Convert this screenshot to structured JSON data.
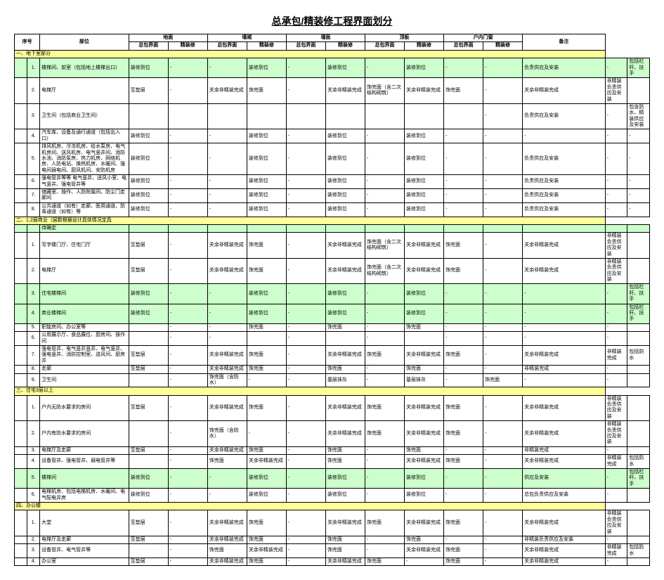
{
  "title": "总承包/精装修工程界面划分",
  "headers": {
    "seq": "序号",
    "part": "部位",
    "groups": [
      "地面",
      "墙裙",
      "墙面",
      "顶板",
      "户内门窗"
    ],
    "sub": [
      "总包界面",
      "精装修"
    ],
    "remark": "备注"
  },
  "sections": [
    {
      "label": "一、地下室部分",
      "rows": [
        {
          "n": "1.",
          "part": "楼梯间、前室（包括地上楼梯出口）",
          "c": [
            "装修到位",
            "-",
            "-",
            "装修到位",
            "-",
            "装修到位",
            "-",
            "装修到位",
            "-",
            "-",
            "负责供应及安装",
            "-"
          ],
          "remark": "包括栏杆、扶手",
          "green": true
        },
        {
          "n": "2.",
          "part": "电梯厅",
          "c": [
            "至垫层",
            "-",
            "关余非精装完成",
            "饰完面",
            "-",
            "关余非精装完成",
            "饰完面（含二次结构砌筑）",
            "关余非精装完成",
            "饰完面",
            "-",
            "关余非精装完成",
            "非精装负责供应及安装"
          ],
          "remark": ""
        },
        {
          "n": "3.",
          "part": "卫生间（包括商业卫生间）",
          "c": [
            "",
            "",
            "",
            "",
            "",
            "",
            "",
            "",
            "",
            "-",
            "负责供应及安装",
            "-"
          ],
          "remark": "包含防水、精装供应及安装"
        },
        {
          "n": "4.",
          "part": "汽车库、设备及通行通道（包括出入口）",
          "c": [
            "装修到位",
            "-",
            "-",
            "装修到位",
            "-",
            "装修到位",
            "-",
            "装修到位",
            "-",
            "-",
            "-",
            "-"
          ],
          "remark": "-"
        },
        {
          "n": "5.",
          "part": "排风机房、冷冻机房、给水泵房、电气机房间、送风机房、电气竖井间、消防水池、消防泵房、热力机房、网络机房、人防电站、换热机房、水暖间、强电间弱电间、厨风机间、安防机房",
          "c": [
            "装修到位",
            "-",
            "-",
            "装修到位",
            "-",
            "装修到位",
            "-",
            "装修到位",
            "-",
            "-",
            "负责供应及安装",
            "-"
          ],
          "remark": "-"
        },
        {
          "n": "6.",
          "part": "强电管井等等 电气竖井、送风小室、电气竖井、强电管井等",
          "c": [
            "装修到位",
            "-",
            "-",
            "装修到位",
            "-",
            "装修到位",
            "-",
            "装修到位",
            "-",
            "-",
            "负责供应及安装",
            "-"
          ],
          "remark": "-"
        },
        {
          "n": "7.",
          "part": "储藏室、操作、人防附属间、防尘门走廊间",
          "c": [
            "装修到位",
            "-",
            "-",
            "装修到位",
            "-",
            "装修到位",
            "-",
            "装修到位",
            "-",
            "-",
            "负责供应及安装",
            "-"
          ],
          "remark": "-"
        },
        {
          "n": "8.",
          "part": "公共通道（如有）走廊、医用通道、防毒通道（如有）等",
          "c": [
            "装修到位",
            "-",
            "-",
            "装修到位",
            "-",
            "装修到位",
            "-",
            "装修到位",
            "-",
            "-",
            "负责供应及安装",
            "-"
          ],
          "remark": "-"
        }
      ]
    },
    {
      "label": "二、1,2层商业（层数根据设计具体情况定具",
      "rows": [
        {
          "n": "",
          "part": "待确定",
          "c": [
            "",
            "",
            "",
            "",
            "",
            "",
            "",
            "",
            "",
            "",
            "",
            ""
          ],
          "remark": "",
          "green": true
        },
        {
          "n": "1.",
          "part": "写字楼门厅、住宅门厅",
          "c": [
            "至垫层",
            "-",
            "关余非精装完成",
            "饰完面",
            "-",
            "关余非精装完成",
            "饰完面（含二次结构砌筑）",
            "关余非精装完成",
            "饰完面",
            "-",
            "关余非精装完成",
            "非精装负责供应及安装"
          ],
          "remark": ""
        },
        {
          "n": "2.",
          "part": "电梯厅",
          "c": [
            "至垫层",
            "-",
            "关余非精装完成",
            "饰完面",
            "-",
            "关余非精装完成",
            "饰完面（含二次结构砌筑）",
            "关余非精装完成",
            "饰完面",
            "-",
            "关余非精装完成",
            "非精装负责供应及安装"
          ],
          "remark": ""
        },
        {
          "n": "3.",
          "part": "住宅楼梯间",
          "c": [
            "装修到位",
            "-",
            "-",
            "装修到位",
            "-",
            "装修到位",
            "-",
            "装修到位",
            "-",
            "-",
            "-",
            "-"
          ],
          "remark": "包括栏杆、扶手",
          "green": true
        },
        {
          "n": "4.",
          "part": "商业楼梯间",
          "c": [
            "装修到位",
            "-",
            "-",
            "装修到位",
            "-",
            "装修到位",
            "-",
            "装修到位",
            "-",
            "-",
            "-",
            "-"
          ],
          "remark": "包括栏杆、扶手",
          "green": true
        },
        {
          "n": "5.",
          "part": "职能房间、办公室等",
          "c": [
            "",
            "-",
            "-",
            "饰完面",
            "-",
            "饰完面",
            "-",
            "饰完面",
            "-",
            "-",
            "-",
            "-"
          ],
          "remark": ""
        },
        {
          "n": "6.",
          "part": "公用展示厅、食品展位、厨房间、操作间",
          "c": [
            "",
            "-",
            "-",
            "",
            "-",
            "",
            "-",
            "",
            "-",
            "-",
            "-",
            "-"
          ],
          "remark": ""
        },
        {
          "n": "7.",
          "part": "强电管井、电气竖井竖井、电气竖井、强电竖井、消防控制室、送风间、厨房井",
          "c": [
            "至垫层",
            "-",
            "关余非精装完成",
            "饰完面",
            "-",
            "关余非精装完成",
            "饰完面",
            "关余非精装完成",
            "饰完面",
            "-",
            "关余非精装完成",
            "非精装完成"
          ],
          "remark": "包括防水"
        },
        {
          "n": "8.",
          "part": "走廊",
          "c": [
            "至垫层",
            "-",
            "关余非精装完成",
            "饰完面",
            "-",
            "饰完面",
            "-",
            "饰完面",
            "-",
            "-",
            "非精装完成",
            "-"
          ],
          "remark": ""
        },
        {
          "n": "9.",
          "part": "卫生间",
          "c": [
            "",
            "-",
            "饰完面（含防水）",
            "-",
            "-",
            "基层抹灰",
            "-",
            "基层抹灰",
            "-",
            "饰完面",
            "-",
            "-"
          ],
          "remark": ""
        }
      ]
    },
    {
      "label": "三、住宅3层以上",
      "rows": [
        {
          "n": "1.",
          "part": "户内无防水要求的房间",
          "c": [
            "至垫层",
            "-",
            "关余非精装完成",
            "饰完面",
            "-",
            "关余非精装完成",
            "饰完面",
            "关余非精装完成",
            "饰完面",
            "-",
            "关余非精装完成",
            "非精装负责供应及安装"
          ],
          "remark": ""
        },
        {
          "n": "2.",
          "part": "户内有防水要求的房间",
          "c": [
            "",
            "-",
            "饰完面（含防水）",
            "-",
            "-",
            "关余非精装完成",
            "饰完面",
            "关余非精装完成",
            "饰完面",
            "-",
            "关余非精装完成",
            "非精装负责供应及安装"
          ],
          "remark": ""
        },
        {
          "n": "3.",
          "part": "电梯厅及走廊",
          "c": [
            "至垫层",
            "-",
            "关余非精装完成",
            "饰完面",
            "-",
            "饰完面",
            "-",
            "饰完面",
            "-",
            "-",
            "非精装完成",
            "-"
          ],
          "remark": ""
        },
        {
          "n": "4.",
          "part": "设备管井、强电管井、弱电管井等",
          "c": [
            "",
            "-",
            "饰完面",
            "关余非精装完成",
            "-",
            "饰完面",
            "-",
            "关余非精装完成",
            "饰完面",
            "-",
            "关余非精装完成",
            "非精装完成"
          ],
          "remark": "包括防水"
        },
        {
          "n": "5.",
          "part": "楼梯间",
          "c": [
            "装修到位",
            "-",
            "-",
            "装修到位",
            "-",
            "装修到位",
            "-",
            "装修到位",
            "-",
            "-",
            "供应及安装",
            "-"
          ],
          "remark": "包括栏杆、扶手",
          "green": true
        },
        {
          "n": "6.",
          "part": "电梯机房、包括电梯机房、水暖间、电气配电井房",
          "c": [
            "装修到位",
            "-",
            "-",
            "装修到位",
            "-",
            "装修到位",
            "-",
            "装修到位",
            "-",
            "-",
            "总包负责供应及安装",
            "-"
          ],
          "remark": ""
        }
      ]
    },
    {
      "label": "四、办公楼",
      "rows": [
        {
          "n": "1.",
          "part": "大堂",
          "c": [
            "至垫层",
            "-",
            "关余非精装完成",
            "饰完面",
            "-",
            "关余非精装完成",
            "饰完面",
            "关余非精装完成",
            "饰完面",
            "-",
            "关余非精装完成",
            "非精装负责供应及安装"
          ],
          "remark": ""
        },
        {
          "n": "2.",
          "part": "电梯厅及走廊",
          "c": [
            "至垫层",
            "-",
            "关余非精装完成",
            "饰完面",
            "-",
            "饰完面",
            "-",
            "饰完面",
            "-",
            "-",
            "非精装负责供应及安装",
            "-"
          ],
          "remark": ""
        },
        {
          "n": "3.",
          "part": "设备管井、电气管井等",
          "c": [
            "",
            "-",
            "饰完面",
            "关余非精装完成",
            "-",
            "饰完面",
            "-",
            "关余非精装完成",
            "饰完面",
            "-",
            "关余非精装完成",
            "非精装完成"
          ],
          "remark": "包括防水"
        },
        {
          "n": "4.",
          "part": "办公室",
          "c": [
            "至垫层",
            "-",
            "关余非精装完成",
            "饰完面",
            "-",
            "关余非精装完成",
            "饰完面",
            "-",
            "饰完面",
            "-",
            "关余非精装完成",
            "-"
          ],
          "remark": ""
        }
      ]
    }
  ]
}
